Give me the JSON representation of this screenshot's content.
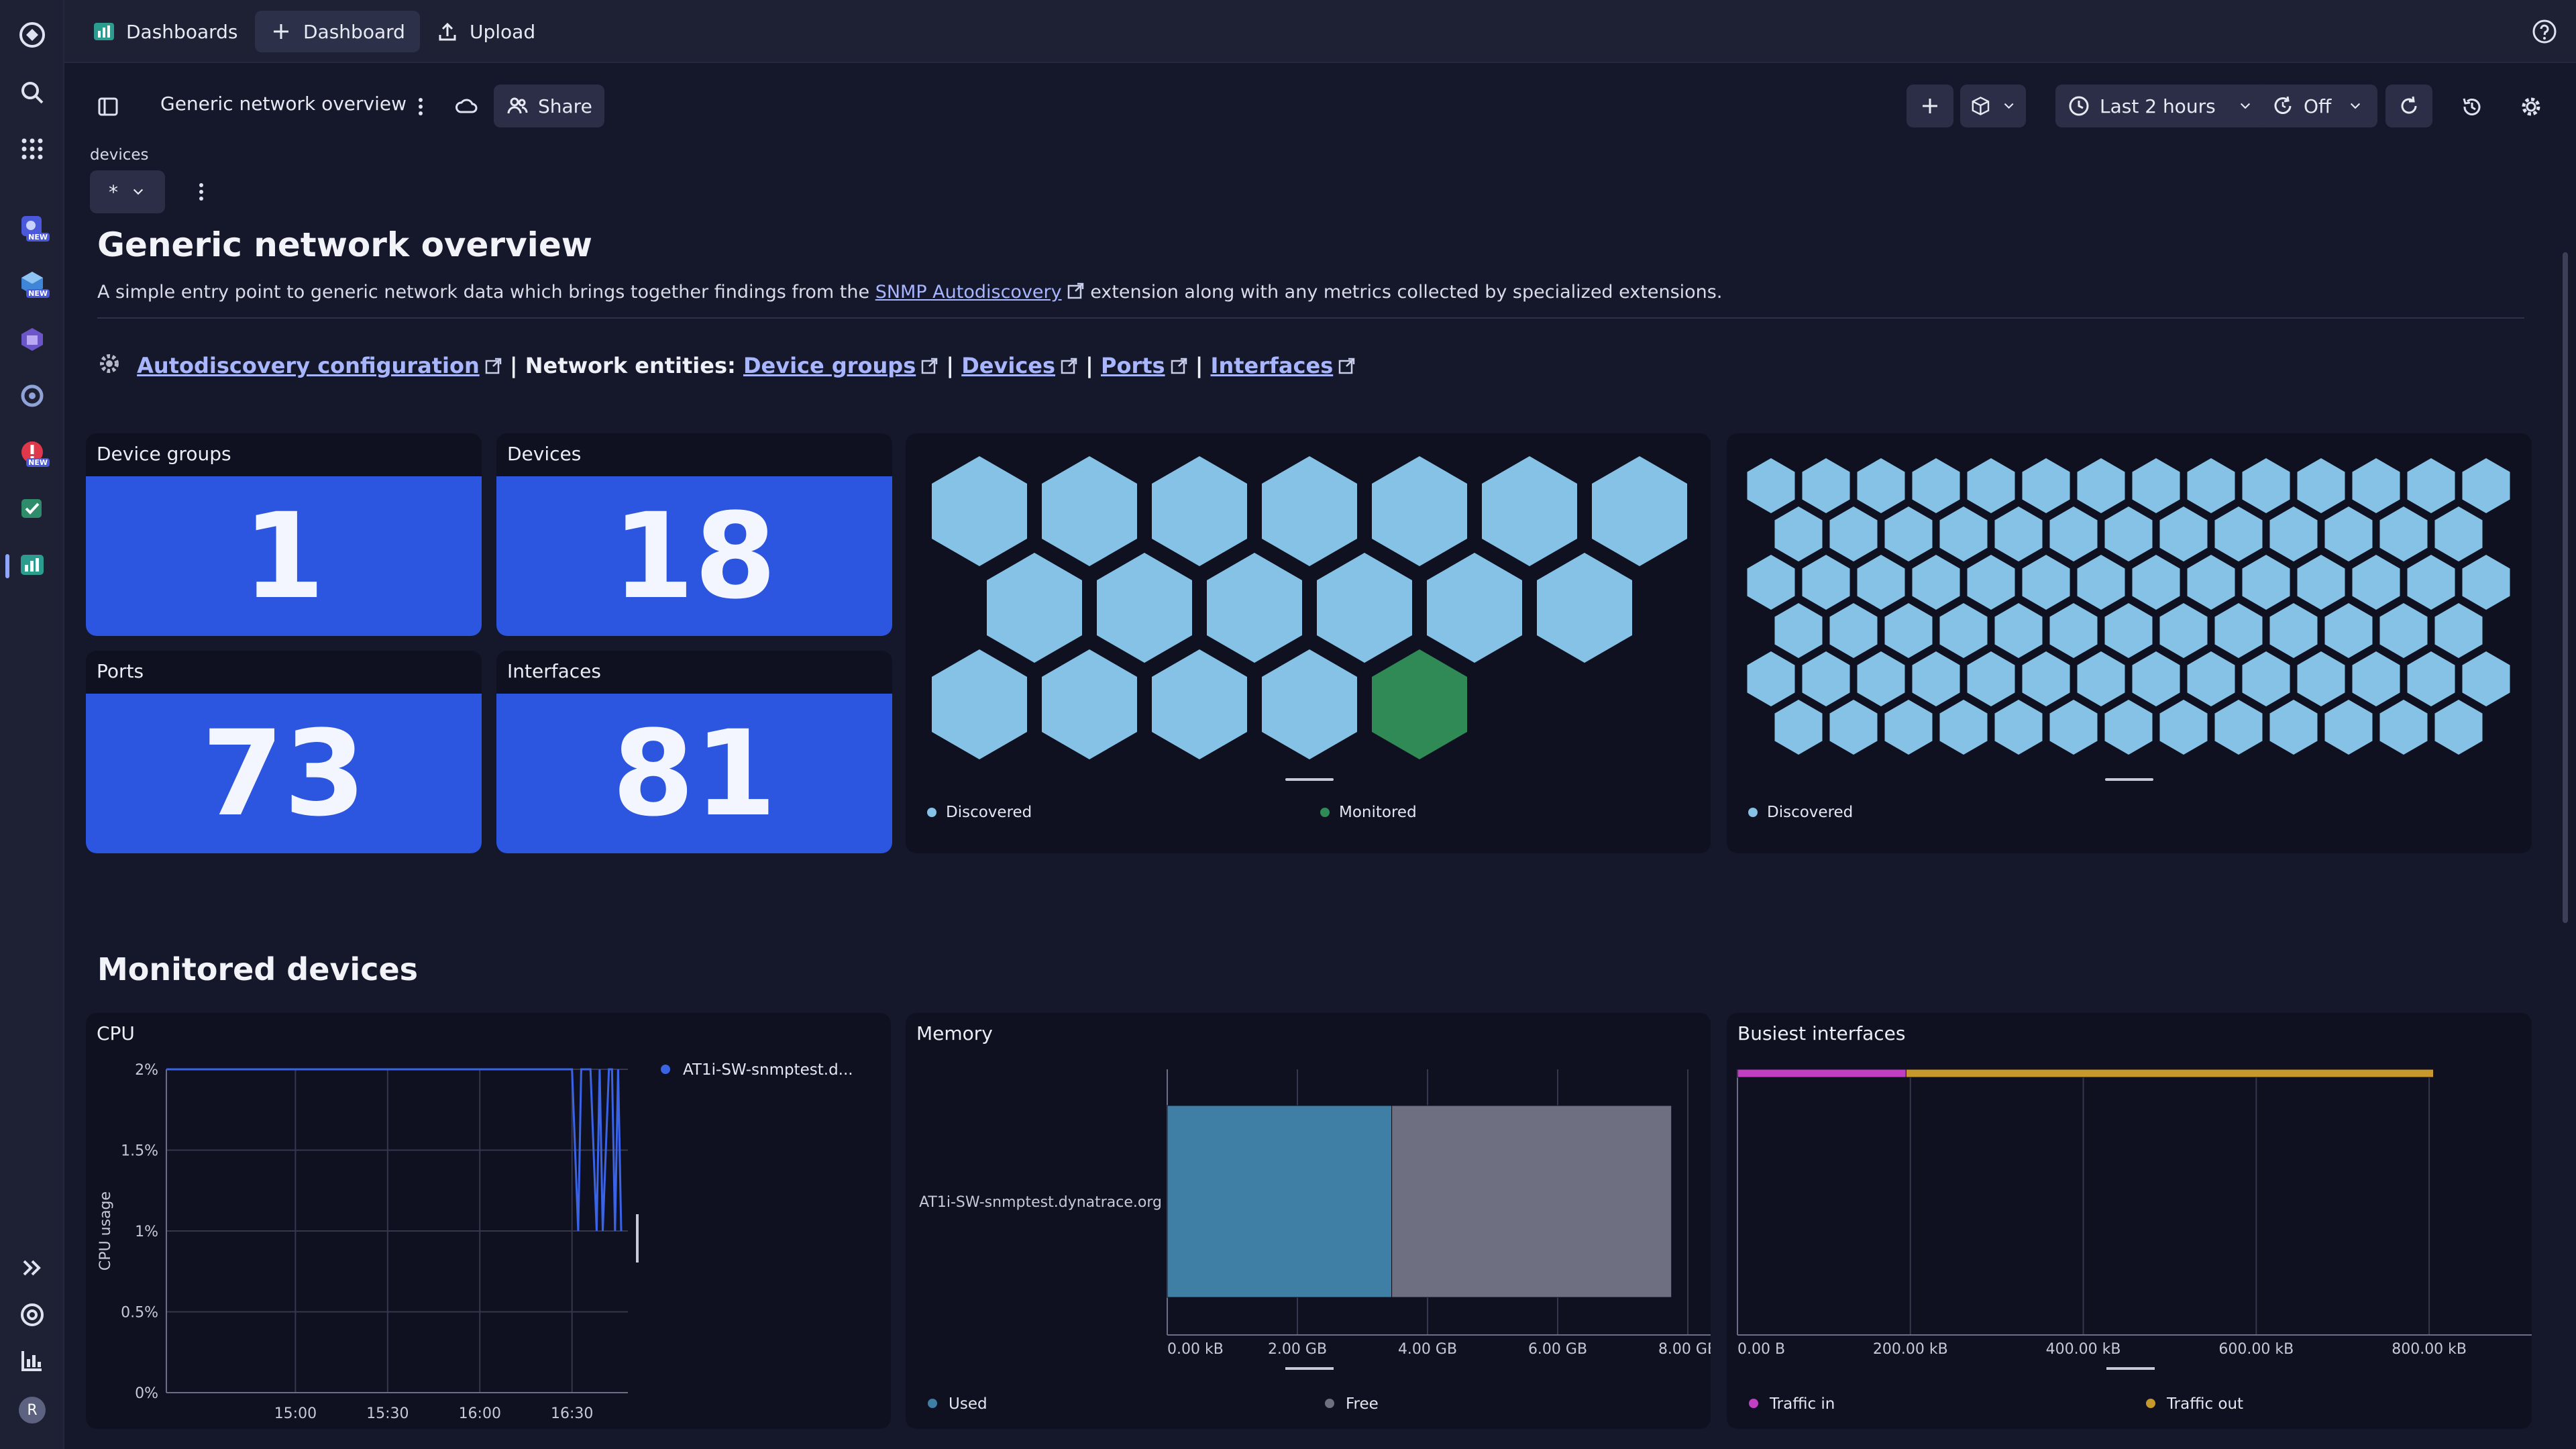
{
  "appbar": {
    "tabs": [
      {
        "label": "Dashboards"
      },
      {
        "label": "Dashboard"
      },
      {
        "label": "Upload"
      }
    ]
  },
  "rail": {
    "new_badge": "NEW",
    "avatar_initial": "R"
  },
  "toolbar": {
    "title": "Generic network overview",
    "share_label": "Share",
    "timeframe_label": "Last 2 hours",
    "refresh_label": "Off"
  },
  "filter": {
    "label": "devices",
    "value": "*"
  },
  "header": {
    "title": "Generic network overview",
    "desc_before": "A simple entry point to generic network data which brings together findings from the ",
    "desc_link": "SNMP Autodiscovery",
    "desc_after": " extension along with any metrics collected by specialized extensions.",
    "autodiscovery_link": "Autodiscovery configuration",
    "separator": " | ",
    "entities_label": "Network entities: ",
    "entity_links": [
      "Device groups",
      "Devices",
      "Ports",
      "Interfaces"
    ]
  },
  "kpis": [
    {
      "title": "Device groups",
      "value": "1"
    },
    {
      "title": "Devices",
      "value": "18"
    },
    {
      "title": "Ports",
      "value": "73"
    },
    {
      "title": "Interfaces",
      "value": "81"
    }
  ],
  "honeycomb_devices": {
    "discovered_count": 17,
    "monitored_count": 1,
    "legend": [
      {
        "label": "Discovered",
        "color": "#86c2e6"
      },
      {
        "label": "Monitored",
        "color": "#2f8a55"
      }
    ]
  },
  "honeycomb_interfaces": {
    "discovered_count": 81,
    "legend": [
      {
        "label": "Discovered",
        "color": "#86c2e6"
      }
    ]
  },
  "section_monitored": "Monitored devices",
  "chart_data": [
    {
      "type": "line",
      "title": "CPU",
      "ylabel": "CPU usage",
      "ylim": [
        0,
        2
      ],
      "yticks": [
        "2%",
        "1.5%",
        "1%",
        "0.5%",
        "0%"
      ],
      "xticks": [
        "15:00",
        "15:30",
        "16:00",
        "16:30"
      ],
      "series": [
        {
          "name": "AT1i-SW-snmptest.d...",
          "color": "#3a63e6",
          "x": [
            "14:18",
            "14:30",
            "14:45",
            "15:00",
            "15:15",
            "15:30",
            "15:45",
            "16:00",
            "16:15",
            "16:30",
            "16:32",
            "16:33",
            "16:35",
            "16:36",
            "16:38",
            "16:39",
            "16:40",
            "16:42",
            "16:43",
            "16:44",
            "16:45",
            "16:46"
          ],
          "values": [
            2,
            2,
            2,
            2,
            2,
            2,
            2,
            2,
            2,
            2,
            1,
            2,
            2,
            2,
            1,
            2,
            1,
            2,
            2,
            1,
            2,
            1
          ]
        }
      ]
    },
    {
      "type": "bar",
      "title": "Memory",
      "orientation": "horizontal",
      "stacked": true,
      "categories": [
        "AT1i-SW-snmptest.dynatrace.org"
      ],
      "xticks": [
        "0.00 kB",
        "2.00 GB",
        "4.00 GB",
        "6.00 GB",
        "8.00 GB"
      ],
      "xlim": [
        0,
        8
      ],
      "series": [
        {
          "name": "Used",
          "color": "#3f7fa6",
          "values": [
            3.45
          ]
        },
        {
          "name": "Free",
          "color": "#6e6f80",
          "values": [
            4.3
          ]
        }
      ]
    },
    {
      "type": "bar",
      "title": "Busiest interfaces",
      "orientation": "horizontal",
      "stacked": true,
      "xticks": [
        "0.00 B",
        "200.00 kB",
        "400.00 kB",
        "600.00 kB",
        "800.00 kB"
      ],
      "xlim": [
        0,
        900
      ],
      "series": [
        {
          "name": "Traffic in",
          "color": "#c23fc4",
          "values": [
            195
          ]
        },
        {
          "name": "Traffic out",
          "color": "#c7982b",
          "values": [
            610
          ]
        }
      ]
    }
  ]
}
